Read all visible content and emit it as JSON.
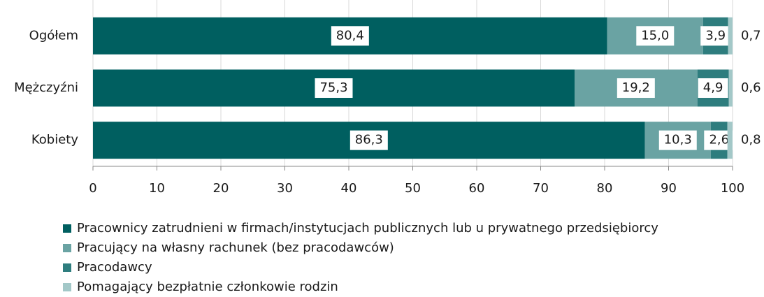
{
  "chart_data": {
    "type": "stacked-bar-horizontal",
    "categories": [
      "Ogółem",
      "Mężczyźni",
      "Kobiety"
    ],
    "series": [
      {
        "name": "Pracownicy zatrudnieni w firmach/instytucjach publicznych lub u prywatnego przedsiębiorcy",
        "color": "#005f60",
        "values": [
          80.4,
          75.3,
          86.3
        ],
        "value_labels": [
          "80,4",
          "75,3",
          "86,3"
        ]
      },
      {
        "name": "Pracujący na własny rachunek (bez pracodawców)",
        "color": "#6aa3a3",
        "values": [
          15.0,
          19.2,
          10.3
        ],
        "value_labels": [
          "15,0",
          "19,2",
          "10,3"
        ]
      },
      {
        "name": "Pracodawcy",
        "color": "#2e7d7e",
        "values": [
          3.9,
          4.9,
          2.6
        ],
        "value_labels": [
          "3,9",
          "4,9",
          "2,6"
        ]
      },
      {
        "name": "Pomagający bezpłatnie członkowie rodzin",
        "color": "#a3c8c8",
        "values": [
          0.7,
          0.6,
          0.8
        ],
        "value_labels": [
          "0,7",
          "0,6",
          "0,8"
        ]
      }
    ],
    "xlim": [
      0,
      100
    ],
    "xticks": [
      0,
      10,
      20,
      30,
      40,
      50,
      60,
      70,
      80,
      90,
      100
    ],
    "grid": true
  }
}
